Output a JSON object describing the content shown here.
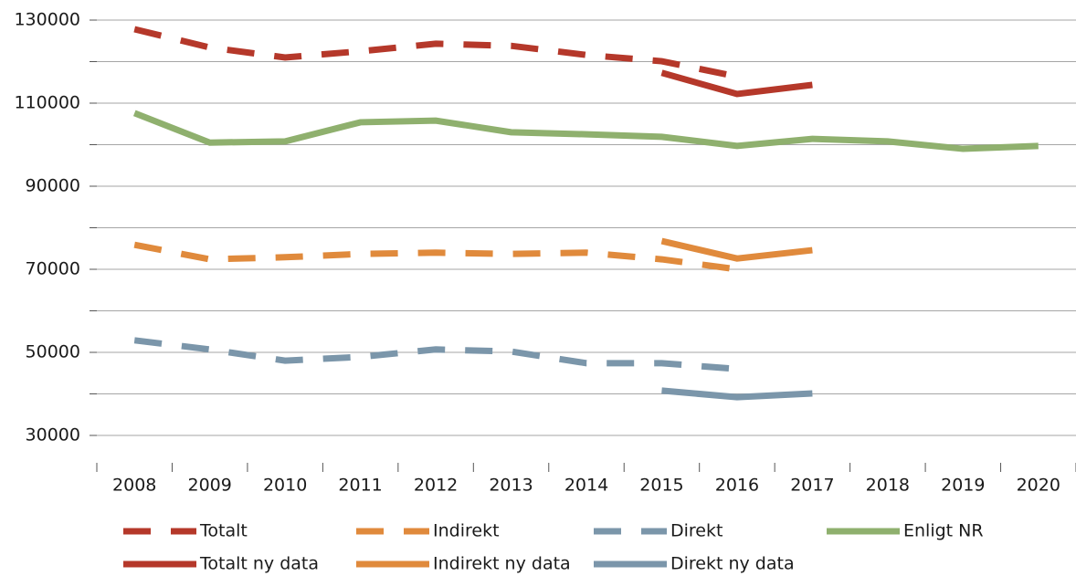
{
  "chart_data": {
    "type": "line",
    "categories": [
      "2008",
      "2009",
      "2010",
      "2011",
      "2012",
      "2013",
      "2014",
      "2015",
      "2016",
      "2017",
      "2018",
      "2019",
      "2020"
    ],
    "ylim": [
      20000,
      130000
    ],
    "yticks": [
      30000,
      50000,
      70000,
      90000,
      110000,
      130000
    ],
    "yminor_ticks": [
      40000,
      60000,
      80000,
      100000,
      120000
    ],
    "grid": true,
    "legend": "bottom",
    "series": [
      {
        "name": "Totalt",
        "color": "#b5382a",
        "dashed": true,
        "values": [
          127800,
          123400,
          121000,
          122500,
          124300,
          123800,
          121600,
          120100,
          116400,
          null,
          null,
          null,
          null
        ]
      },
      {
        "name": "Indirekt",
        "color": "#e08a3c",
        "dashed": true,
        "values": [
          75900,
          72400,
          72900,
          73700,
          74000,
          73700,
          74000,
          72400,
          70000,
          null,
          null,
          null,
          null
        ]
      },
      {
        "name": "Direkt",
        "color": "#7b96aa",
        "dashed": true,
        "values": [
          52900,
          50700,
          48000,
          48900,
          50700,
          50200,
          47400,
          47400,
          46000,
          null,
          null,
          null,
          null
        ]
      },
      {
        "name": "Enligt NR",
        "color": "#8fb06e",
        "dashed": false,
        "values": [
          107600,
          100500,
          100800,
          105400,
          105800,
          103000,
          102500,
          101900,
          99700,
          101400,
          100800,
          99000,
          99700
        ]
      },
      {
        "name": "Totalt ny data",
        "color": "#b5382a",
        "dashed": false,
        "values": [
          null,
          null,
          null,
          null,
          null,
          null,
          null,
          117300,
          112200,
          114400,
          null,
          null,
          null
        ]
      },
      {
        "name": "Indirekt ny data",
        "color": "#e08a3c",
        "dashed": false,
        "values": [
          null,
          null,
          null,
          null,
          null,
          null,
          null,
          76800,
          72600,
          74600,
          null,
          null,
          null
        ]
      },
      {
        "name": "Direkt ny data",
        "color": "#7b96aa",
        "dashed": false,
        "values": [
          null,
          null,
          null,
          null,
          null,
          null,
          null,
          40800,
          39200,
          40100,
          null,
          null,
          null
        ]
      }
    ]
  }
}
